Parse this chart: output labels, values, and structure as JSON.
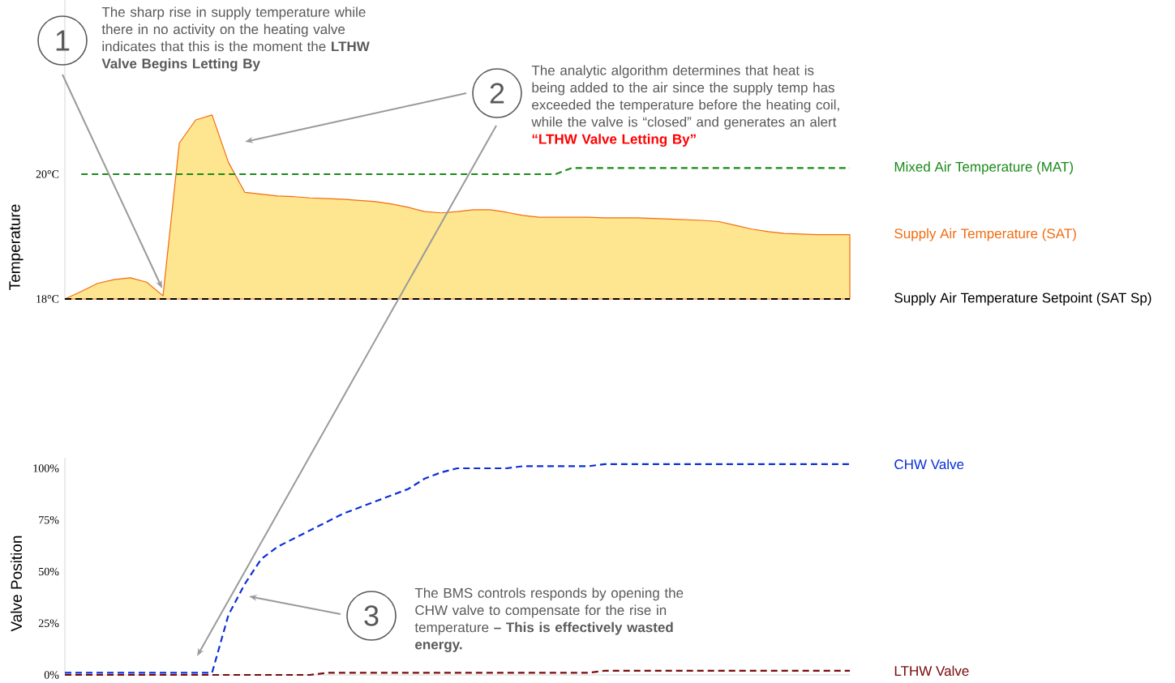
{
  "chart_data": [
    {
      "type": "line",
      "ylabel": "Temperature",
      "categories": [
        null,
        null,
        null,
        null,
        null,
        null,
        null,
        null,
        null,
        null,
        null,
        null,
        null,
        null,
        null,
        null,
        null,
        null,
        null,
        null,
        null,
        null,
        null,
        null,
        null,
        null,
        null,
        null,
        null,
        null,
        null,
        null,
        null,
        null,
        null,
        null,
        null,
        null,
        null,
        null,
        null,
        null,
        null,
        null,
        null,
        null,
        null,
        null,
        null
      ],
      "ylim": [
        18,
        22.8
      ],
      "yticks": [
        {
          "value": 18,
          "label": "18°C"
        },
        {
          "value": 20,
          "label": "20°C"
        }
      ],
      "tick_labels": "y",
      "series": [
        {
          "name": "Supply Air Temperature (SAT)",
          "type": "area",
          "color": "#fee690",
          "line_style": "solid",
          "values": [
            18.0,
            18.12,
            18.25,
            18.31,
            18.34,
            18.27,
            18.05,
            20.5,
            20.87,
            20.95,
            20.19,
            19.71,
            19.68,
            19.65,
            19.64,
            19.62,
            19.61,
            19.6,
            19.58,
            19.56,
            19.52,
            19.47,
            19.4,
            19.38,
            19.4,
            19.43,
            19.43,
            19.39,
            19.34,
            19.31,
            19.31,
            19.31,
            19.31,
            19.3,
            19.3,
            19.3,
            19.29,
            19.28,
            19.27,
            19.26,
            19.24,
            19.18,
            19.12,
            19.08,
            19.05,
            19.04,
            19.03,
            19.03,
            19.03
          ]
        },
        {
          "name": "Mixed Air Temperature (MAT)",
          "color": "#1a8a1a",
          "line_style": "dashed",
          "values": [
            null,
            20.0,
            20.0,
            20.0,
            20.0,
            20.0,
            20.0,
            20.0,
            20.0,
            20.0,
            20.0,
            20.0,
            20.0,
            20.0,
            20.0,
            20.0,
            20.0,
            20.0,
            20.0,
            20.0,
            20.0,
            20.0,
            20.0,
            20.0,
            20.0,
            20.0,
            20.0,
            20.0,
            20.0,
            20.0,
            20.0,
            20.1,
            20.1,
            20.1,
            20.1,
            20.1,
            20.1,
            20.1,
            20.1,
            20.1,
            20.1,
            20.1,
            20.1,
            20.1,
            20.1,
            20.1,
            20.1,
            20.1,
            20.1
          ]
        },
        {
          "name": "Supply Air Temperature Setpoint (SAT Sp)",
          "color": "#000000",
          "line_style": "dashed",
          "values": [
            18,
            18,
            18,
            18,
            18,
            18,
            18,
            18,
            18,
            18,
            18,
            18,
            18,
            18,
            18,
            18,
            18,
            18,
            18,
            18,
            18,
            18,
            18,
            18,
            18,
            18,
            18,
            18,
            18,
            18,
            18,
            18,
            18,
            18,
            18,
            18,
            18,
            18,
            18,
            18,
            18,
            18,
            18,
            18,
            18,
            18,
            18,
            18,
            18
          ]
        }
      ],
      "annotations": [
        "1",
        "The sharp rise in supply temperature while there in no activity on the heating valve indicates that this is the moment the **LTHW Valve Begins Letting By**",
        "2",
        "The analytic algorithm determines that heat is being added to the air since the supply temp has exceeded the temperature before the heating coil, while the valve is “closed” and generates an alert",
        "**“LTHW Valve Letting By”**"
      ]
    },
    {
      "type": "line",
      "ylabel": "Valve Position",
      "categories": [
        null,
        null,
        null,
        null,
        null,
        null,
        null,
        null,
        null,
        null,
        null,
        null,
        null,
        null,
        null,
        null,
        null,
        null,
        null,
        null,
        null,
        null,
        null,
        null,
        null,
        null,
        null,
        null,
        null,
        null,
        null,
        null,
        null,
        null,
        null,
        null,
        null,
        null,
        null,
        null,
        null,
        null,
        null,
        null,
        null,
        null,
        null,
        null,
        null
      ],
      "ylim": [
        0,
        105
      ],
      "yticks": [
        {
          "value": 0,
          "label": "0%"
        },
        {
          "value": 25,
          "label": "25%"
        },
        {
          "value": 50,
          "label": "50%"
        },
        {
          "value": 75,
          "label": "75%"
        },
        {
          "value": 100,
          "label": "100%"
        }
      ],
      "tick_labels": "y",
      "series": [
        {
          "name": "CHW Valve",
          "color": "#0a2ed8",
          "line_style": "dashed",
          "values": [
            1,
            1,
            1,
            1,
            1,
            1,
            1,
            1,
            1,
            1,
            29,
            44,
            56,
            62,
            66,
            70,
            74,
            78,
            81,
            84,
            87,
            90,
            95,
            98,
            100,
            100,
            100,
            100,
            101,
            101,
            101,
            101,
            101,
            102,
            102,
            102,
            102,
            102,
            102,
            102,
            102,
            102,
            102,
            102,
            102,
            102,
            102,
            102,
            102
          ]
        },
        {
          "name": "LTHW Valve",
          "color": "#7a0a0a",
          "line_style": "dashed",
          "values": [
            0,
            0,
            0,
            0,
            0,
            0,
            0,
            0,
            0,
            0,
            0,
            0,
            0,
            0,
            0,
            0,
            1,
            1,
            1,
            1,
            1,
            1,
            1,
            1,
            1,
            1,
            1,
            1,
            1,
            1,
            1,
            1,
            1,
            2,
            2,
            2,
            2,
            2,
            2,
            2,
            2,
            2,
            2,
            2,
            2,
            2,
            2,
            2,
            2
          ]
        }
      ],
      "annotations": [
        "3",
        "The BMS controls responds by opening the CHW valve to compensate for the rise in temperature **– This is effectively wasted energy.**"
      ]
    }
  ]
}
